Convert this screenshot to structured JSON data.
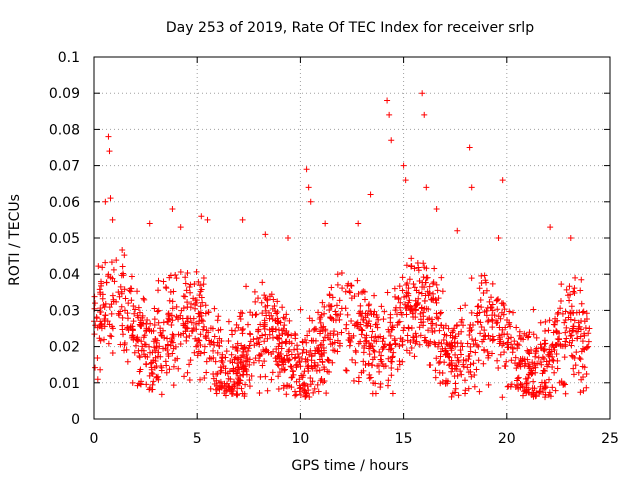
{
  "chart_data": {
    "type": "scatter",
    "title": "Day 253 of 2019, Rate Of TEC Index for receiver srlp",
    "xlabel": "GPS time / hours",
    "ylabel": "ROTI / TECUs",
    "xlim": [
      0,
      25
    ],
    "ylim": [
      0,
      0.1
    ],
    "x_ticks": [
      0,
      5,
      10,
      15,
      20,
      25
    ],
    "x_tick_labels": [
      "0",
      "5",
      "10",
      "15",
      "20",
      "25"
    ],
    "y_ticks": [
      0,
      0.01,
      0.02,
      0.03,
      0.04,
      0.05,
      0.06,
      0.07,
      0.08,
      0.09,
      0.1
    ],
    "y_tick_labels": [
      "0",
      "0.01",
      "0.02",
      "0.03",
      "0.04",
      "0.05",
      "0.06",
      "0.07",
      "0.08",
      "0.09",
      "0.1"
    ],
    "grid": true,
    "marker": "+",
    "marker_color": "#ff0000",
    "series": [
      {
        "name": "ROTI",
        "x_range_hours": [
          0,
          24
        ],
        "typical_range": [
          0.008,
          0.045
        ],
        "x": [
          0.05,
          0.3,
          0.55,
          0.7,
          0.75,
          0.8,
          0.9,
          1.5,
          2.7,
          3.8,
          4.2,
          5.2,
          5.5,
          7.2,
          8.3,
          9.4,
          10.3,
          10.4,
          10.5,
          11.2,
          12.8,
          13.4,
          14.2,
          14.3,
          14.4,
          15.0,
          15.1,
          15.9,
          16.0,
          16.1,
          16.6,
          17.6,
          18.2,
          18.3,
          19.6,
          19.8,
          22.1,
          23.1,
          24.0
        ],
        "y": [
          0.032,
          0.035,
          0.06,
          0.078,
          0.074,
          0.061,
          0.055,
          0.03,
          0.054,
          0.058,
          0.053,
          0.056,
          0.055,
          0.055,
          0.051,
          0.05,
          0.069,
          0.064,
          0.06,
          0.054,
          0.054,
          0.062,
          0.088,
          0.084,
          0.077,
          0.07,
          0.066,
          0.09,
          0.084,
          0.064,
          0.058,
          0.052,
          0.075,
          0.064,
          0.05,
          0.066,
          0.053,
          0.05,
          0.025
        ]
      }
    ]
  }
}
